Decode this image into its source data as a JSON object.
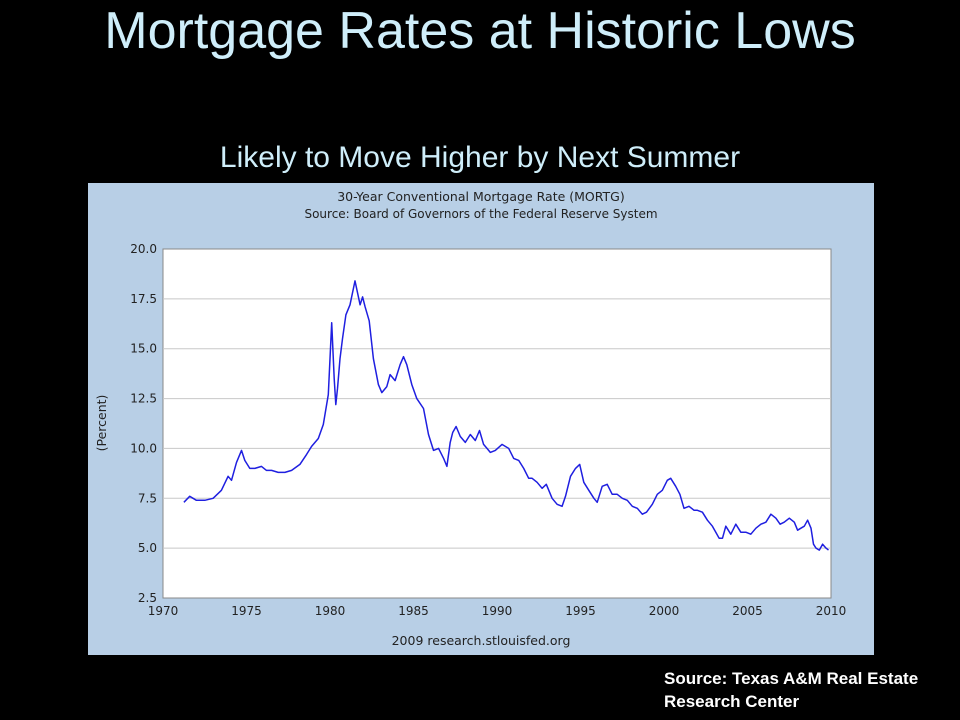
{
  "slide": {
    "title": "Mortgage Rates at Historic Lows",
    "subtitle": "Likely to Move Higher by Next Summer",
    "source_note": "Source: Texas A&M Real Estate Research Center"
  },
  "colors": {
    "background": "#000000",
    "title": "#cfeefa",
    "panel": "#b8cfe6",
    "line": "#1f1fe0"
  },
  "chart_data": {
    "type": "line",
    "title": "30-Year Conventional Mortgage Rate (MORTG)",
    "subtitle": "Source: Board of Governors of the Federal Reserve System",
    "ylabel": "(Percent)",
    "footer": "2009 research.stlouisfed.org",
    "xlim": [
      1970,
      2010
    ],
    "ylim": [
      2.5,
      20.0
    ],
    "x_ticks": [
      "1970",
      "1975",
      "1980",
      "1985",
      "1990",
      "1995",
      "2000",
      "2005",
      "2010"
    ],
    "y_ticks": [
      "2.5",
      "5.0",
      "7.5",
      "10.0",
      "12.5",
      "15.0",
      "17.5",
      "20.0"
    ],
    "grid": true,
    "series": [
      {
        "x": [
          1971.25,
          1971.6,
          1972.0,
          1972.5,
          1973.0,
          1973.5,
          1973.9,
          1974.1,
          1974.4,
          1974.7,
          1974.9,
          1975.2,
          1975.5,
          1975.9,
          1976.2,
          1976.5,
          1976.9,
          1977.3,
          1977.7,
          1978.2,
          1978.6,
          1978.9,
          1979.3,
          1979.6,
          1979.9,
          1980.1,
          1980.25,
          1980.35,
          1980.45,
          1980.6,
          1980.75,
          1980.95,
          1981.2,
          1981.5,
          1981.8,
          1981.95,
          1982.1,
          1982.35,
          1982.6,
          1982.9,
          1983.1,
          1983.4,
          1983.6,
          1983.9,
          1984.2,
          1984.4,
          1984.6,
          1984.9,
          1985.2,
          1985.6,
          1985.9,
          1986.2,
          1986.5,
          1986.8,
          1987.0,
          1987.2,
          1987.35,
          1987.55,
          1987.8,
          1988.1,
          1988.4,
          1988.7,
          1988.95,
          1989.2,
          1989.4,
          1989.6,
          1989.9,
          1990.3,
          1990.7,
          1991.0,
          1991.3,
          1991.6,
          1991.9,
          1992.1,
          1992.4,
          1992.7,
          1992.95,
          1993.3,
          1993.6,
          1993.9,
          1994.1,
          1994.4,
          1994.7,
          1994.95,
          1995.2,
          1995.5,
          1995.8,
          1996.0,
          1996.3,
          1996.6,
          1996.9,
          1997.2,
          1997.5,
          1997.8,
          1998.1,
          1998.4,
          1998.7,
          1998.95,
          1999.3,
          1999.6,
          1999.9,
          2000.2,
          2000.4,
          2000.7,
          2000.95,
          2001.2,
          2001.5,
          2001.8,
          2002.0,
          2002.3,
          2002.6,
          2002.9,
          2003.1,
          2003.3,
          2003.5,
          2003.7,
          2004.0,
          2004.3,
          2004.6,
          2004.9,
          2005.2,
          2005.5,
          2005.8,
          2006.1,
          2006.4,
          2006.7,
          2006.95,
          2007.2,
          2007.5,
          2007.8,
          2008.0,
          2008.2,
          2008.4,
          2008.6,
          2008.8,
          2008.95,
          2009.1,
          2009.3,
          2009.5,
          2009.7,
          2009.85
        ],
        "values": [
          7.3,
          7.6,
          7.4,
          7.4,
          7.5,
          7.9,
          8.6,
          8.4,
          9.3,
          9.9,
          9.4,
          9.0,
          9.0,
          9.1,
          8.9,
          8.9,
          8.8,
          8.8,
          8.9,
          9.2,
          9.7,
          10.1,
          10.5,
          11.2,
          12.7,
          16.3,
          13.5,
          12.2,
          13.0,
          14.5,
          15.5,
          16.7,
          17.2,
          18.4,
          17.2,
          17.6,
          17.1,
          16.4,
          14.5,
          13.2,
          12.8,
          13.1,
          13.7,
          13.4,
          14.2,
          14.6,
          14.2,
          13.2,
          12.5,
          12.0,
          10.7,
          9.9,
          10.0,
          9.5,
          9.1,
          10.3,
          10.8,
          11.1,
          10.6,
          10.3,
          10.7,
          10.4,
          10.9,
          10.2,
          10.0,
          9.8,
          9.9,
          10.2,
          10.0,
          9.5,
          9.4,
          9.0,
          8.5,
          8.5,
          8.3,
          8.0,
          8.2,
          7.5,
          7.2,
          7.1,
          7.6,
          8.6,
          9.0,
          9.2,
          8.3,
          7.9,
          7.5,
          7.3,
          8.1,
          8.2,
          7.7,
          7.7,
          7.5,
          7.4,
          7.1,
          7.0,
          6.7,
          6.8,
          7.2,
          7.7,
          7.9,
          8.4,
          8.5,
          8.1,
          7.7,
          7.0,
          7.1,
          6.9,
          6.9,
          6.8,
          6.4,
          6.1,
          5.8,
          5.5,
          5.5,
          6.1,
          5.7,
          6.2,
          5.8,
          5.8,
          5.7,
          6.0,
          6.2,
          6.3,
          6.7,
          6.5,
          6.2,
          6.3,
          6.5,
          6.3,
          5.9,
          6.0,
          6.1,
          6.4,
          6.0,
          5.2,
          5.0,
          4.9,
          5.2,
          5.0,
          4.9
        ]
      }
    ]
  }
}
